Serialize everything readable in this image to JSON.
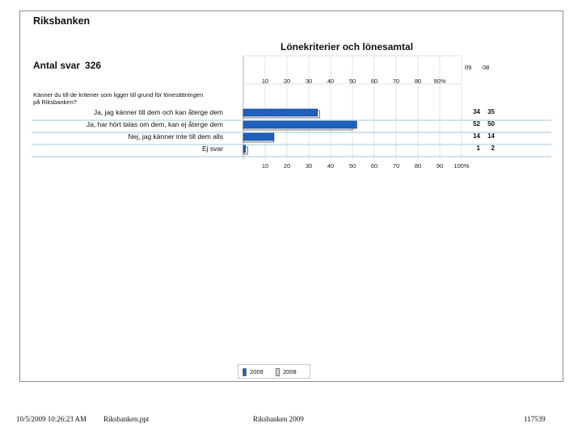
{
  "header": {
    "org": "Riksbanken",
    "title": "Lönekriterier och lönesamtal",
    "count_label": "Antal svar",
    "count_value": "326",
    "question": "Känner du till de kriterier som ligger till grund för lönesättningen på Riksbanken?",
    "col_left": "09",
    "col_right": "08"
  },
  "chart_data": {
    "type": "bar",
    "orientation": "horizontal",
    "categories": [
      "Ja, jag känner till dem och kan återge dem",
      "Ja, har hört talas om dem, kan ej återge dem",
      "Nej, jag känner inte till dem alls",
      "Ej svar"
    ],
    "series": [
      {
        "name": "2009",
        "color": "#1f5fbf",
        "values": [
          34,
          52,
          14,
          1
        ]
      },
      {
        "name": "2008",
        "color": "#d4d4d4",
        "values": [
          35,
          50,
          14,
          2
        ]
      }
    ],
    "xlim": [
      0,
      100
    ],
    "top_ticks": [
      "10",
      "20",
      "30",
      "40",
      "50",
      "60",
      "70",
      "80",
      "90%"
    ],
    "bottom_ticks": [
      "10",
      "20",
      "30",
      "40",
      "50",
      "60",
      "70",
      "80",
      "90",
      "100%"
    ],
    "grid": true,
    "legend_position": "bottom-center"
  },
  "footer": {
    "datetime": "10/5/2009 10:26:23 AM",
    "file": "Riksbanken.ppt",
    "center": "Riksbanken 2009",
    "id": "117539"
  }
}
